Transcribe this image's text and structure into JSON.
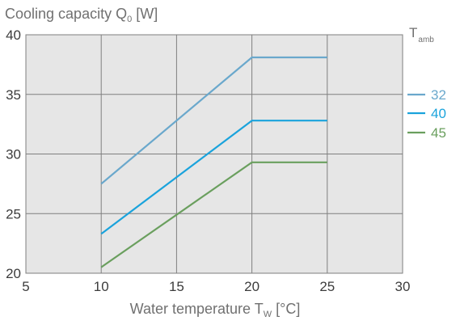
{
  "chart_data": {
    "type": "line",
    "ylabel_main": "Cooling capacity Q",
    "ylabel_sub": "0",
    "ylabel_unit": " [W]",
    "xlabel_main": "Water temperature T",
    "xlabel_sub": "W",
    "xlabel_unit": " [°C]",
    "xlim": [
      5,
      30
    ],
    "ylim": [
      20,
      40
    ],
    "xticks": [
      "5",
      "10",
      "15",
      "20",
      "25",
      "30"
    ],
    "yticks": [
      "20",
      "25",
      "30",
      "35",
      "40"
    ],
    "xtick_values": [
      5,
      10,
      15,
      20,
      25,
      30
    ],
    "ytick_values": [
      20,
      25,
      30,
      35,
      40
    ],
    "grid": true,
    "legend": {
      "title_main": "T",
      "title_sub": "amb",
      "placement": "right"
    },
    "series": [
      {
        "name": "32",
        "color": "#6aa8cc",
        "x": [
          10,
          20,
          25
        ],
        "y": [
          27.5,
          38.1,
          38.1
        ]
      },
      {
        "name": "40",
        "color": "#1aa3dc",
        "x": [
          10,
          20,
          25
        ],
        "y": [
          23.3,
          32.8,
          32.8
        ]
      },
      {
        "name": "45",
        "color": "#6a9f5e",
        "x": [
          10,
          20,
          25
        ],
        "y": [
          20.5,
          29.3,
          29.3
        ]
      }
    ]
  }
}
